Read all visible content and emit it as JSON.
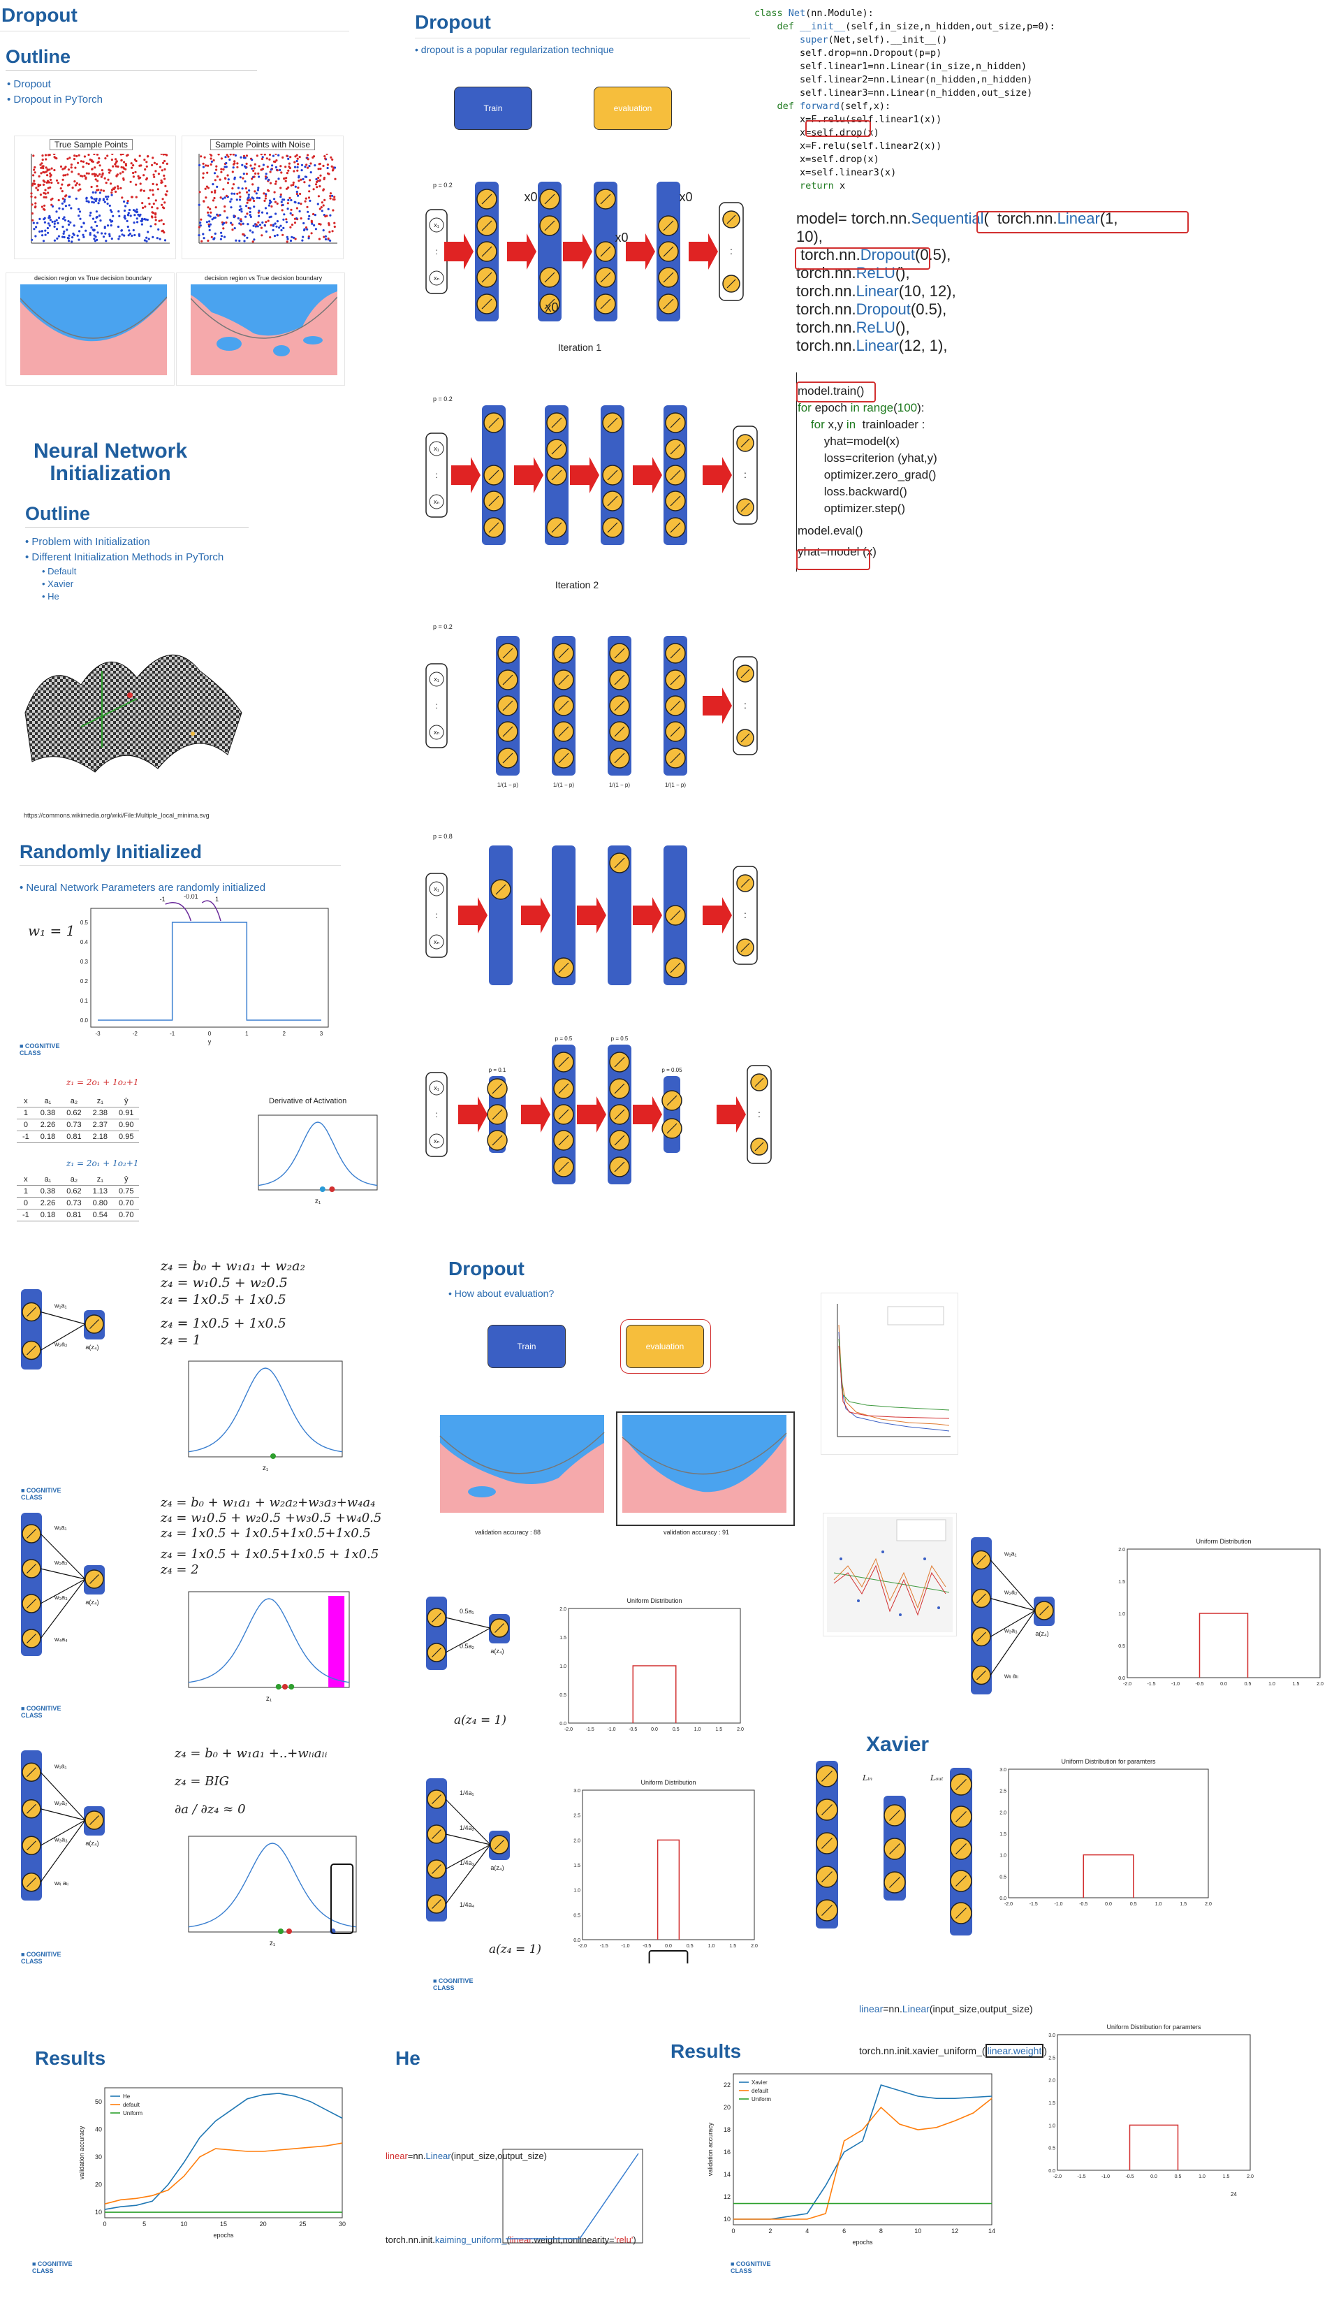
{
  "slide1": {
    "title": "Dropout",
    "outline": "Outline",
    "bullets": [
      "Dropout",
      "Dropout in PyTorch"
    ],
    "plot1_title": "True Sample Points",
    "plot2_title": "Sample Points with Noise",
    "plot3_title": "decision region vs True decision boundary",
    "plot4_title": "decision region vs True decision boundary"
  },
  "slide2": {
    "title": "Neural Network\nInitialization",
    "outline": "Outline",
    "bullets": [
      "Problem with Initialization",
      "Different Initialization Methods in PyTorch"
    ],
    "subbullets": [
      "Default",
      "Xavier",
      "He"
    ],
    "caption": "https://commons.wikimedia.org/wiki/File:Multiple_local_minima.svg"
  },
  "slide3": {
    "title": "Randomly Initialized",
    "bullet": "Neural Network Parameters are randomly initialized",
    "w_label": "w₁ = 1",
    "arrow_labels": [
      "-1",
      "-0.01",
      "1"
    ],
    "x_ticks": [
      "-3",
      "-2",
      "-1",
      "0",
      "1",
      "2",
      "3"
    ],
    "y_ticks": [
      "0.0",
      "0.1",
      "0.2",
      "0.3",
      "0.4",
      "0.5"
    ],
    "xlabel": "y"
  },
  "slide4": {
    "eq1": "z₁ = 2o₁ + 1o₂+1",
    "eq2": "z₁ = 2o₁ + 1o₂+1",
    "table_headers": [
      "x",
      "a₁",
      "a₂",
      "z₁",
      "ŷ"
    ],
    "table1": [
      [
        "1",
        "0.38",
        "0.62",
        "2.38",
        "0.91"
      ],
      [
        "0",
        "2.26",
        "0.73",
        "2.37",
        "0.90"
      ],
      [
        "-1",
        "0.18",
        "0.81",
        "2.18",
        "0.95"
      ]
    ],
    "table2": [
      [
        "1",
        "0.38",
        "0.62",
        "1.13",
        "0.75"
      ],
      [
        "0",
        "2.26",
        "0.73",
        "0.80",
        "0.70"
      ],
      [
        "-1",
        "0.18",
        "0.81",
        "0.54",
        "0.70"
      ]
    ],
    "chart_title": "Derivative of Activation",
    "xlabel": "z₁"
  },
  "slide5": {
    "eqs": [
      "z₄ = b₀ + w₁a₁ + w₂a₂",
      "z₄ = w₁0.5 + w₂0.5",
      "z₄ = 1x0.5 + 1x0.5",
      "z₄ = 1x0.5 + 1x0.5",
      "z₄ = 1"
    ],
    "node_labels": [
      "w₁a₁",
      "w₂a₂",
      "a(z₄)"
    ]
  },
  "slide6": {
    "eqs": [
      "z₄ = b₀ + w₁a₁ + w₂a₂+w₃a₃+w₄a₄",
      "z₄ = w₁0.5 + w₂0.5 +w₃0.5 +w₄0.5",
      "z₄ = 1x0.5 + 1x0.5+1x0.5+1x0.5",
      "z₄ = 1x0.5 + 1x0.5+1x0.5 + 1x0.5",
      "z₄ = 2"
    ],
    "node_labels": [
      "w₁a₁",
      "w₂a₂",
      "w₃a₃",
      "w₄a₄",
      "a(z₄)"
    ]
  },
  "slide7": {
    "eqs": [
      "z₄ = b₀ + w₁a₁ +..+wₗᵢaₗᵢ",
      "z₄ = BIG"
    ],
    "deriv": "∂a / ∂z₄ ≈ 0",
    "node_labels": [
      "w₁a₁",
      "w₂a₂",
      "w₃a₃",
      "wₗᵢ aₗᵢ",
      "a(z₄)"
    ]
  },
  "slide8": {
    "title": "Dropout",
    "bullet": "dropout is a popular regularization technique",
    "train": "Train",
    "eval": "evaluation",
    "p_label": "p = 0.2",
    "x0": "x0",
    "iter1": "Iteration 1"
  },
  "slide9": {
    "p_label": "p = 0.2",
    "iter2": "Iteration 2"
  },
  "slide10": {
    "p_label": "p = 0.2",
    "scale_label": "1/(1 − p)"
  },
  "slide11": {
    "p_label": "p = 0.8"
  },
  "slide12": {
    "labels": [
      "p = 0.1",
      "p = 0.5",
      "p = 0.5",
      "p = 0.05"
    ]
  },
  "code": {
    "lines": [
      "class Net(nn.Module):",
      "    def __init__(self,in_size,n_hidden,out_size,p=0):",
      "        super(Net,self).__init__()",
      "        self.drop=nn.Dropout(p=p)",
      "        self.linear1=nn.Linear(in_size,n_hidden)",
      "        self.linear2=nn.Linear(n_hidden,n_hidden)",
      "        self.linear3=nn.Linear(n_hidden,out_size)",
      "    def forward(self,x):",
      "        x=F.relu(self.linear1(x))",
      "        x=self.drop(x)",
      "        x=F.relu(self.linear2(x))",
      "        x=self.drop(x)",
      "        x=self.linear3(x)",
      "        return x"
    ],
    "seq": [
      "model= torch.nn.Sequential(  torch.nn.Linear(1,",
      "10),",
      " torch.nn.Dropout(0.5),",
      "torch.nn.ReLU(),",
      "torch.nn.Linear(10, 12),",
      "torch.nn.Dropout(0.5),",
      "torch.nn.ReLU(),",
      "torch.nn.Linear(12, 1),"
    ],
    "train": [
      "model.train()",
      "for epoch in range(100):",
      "    for x,y in  trainloader :",
      "        yhat=model(x)",
      "        loss=criterion (yhat,y)",
      "        optimizer.zero_grad()",
      "        loss.backward()",
      "        optimizer.step()",
      "model.eval()",
      "yhat=model (x)"
    ]
  },
  "slide13": {
    "title": "Dropout",
    "bullet": "How about evaluation?",
    "train": "Train",
    "eval": "evaluation",
    "val1": "validation accuracy : 88",
    "val2": "validation accuracy : 91"
  },
  "slide14": {
    "labels": [
      "0.5a₁",
      "0.5a₂",
      "a(z₄)"
    ],
    "chart_title": "Uniform Distribution",
    "a_eq": "a(z₄ = 1)"
  },
  "slide15": {
    "labels": [
      "1/4a₁",
      "1/4a₂",
      "1/4a₃",
      "1/4a₄",
      "a(z₄)"
    ],
    "chart_title": "Uniform Distribution",
    "a_eq": "a(z₄ = 1)"
  },
  "slide16": {
    "labels": [
      "w₁a₁",
      "w₂a₂",
      "w₃a₃",
      "wₗᵢ aₗᵢ",
      "a(z₄)"
    ],
    "chart_title": "Uniform Distribution",
    "xticks": [
      "-2.0",
      "-1.5",
      "-1.0",
      "-0.5",
      "0.0",
      "0.5",
      "1.0",
      "1.5",
      "2.0"
    ]
  },
  "slide17": {
    "title": "Xavier",
    "lin": "Lᵢₙ",
    "lout": "Lₒᵤₜ",
    "chart_title": "Uniform Distribution for paramters",
    "code1": "linear=nn.Linear(input_size,output_size)",
    "code2": "torch.nn.init.xavier_uniform_(linear.weight)"
  },
  "slide18": {
    "title": "Results",
    "legend": [
      "He",
      "default",
      "Uniform"
    ],
    "xlabel": "epochs",
    "ylabel": "validation accuracy"
  },
  "slide19": {
    "title": "He",
    "code1": "linear=nn.Linear(input_size,output_size)",
    "code2": "torch.nn.init.kaiming_uniform_(linear.weight,nonlinearity='relu')"
  },
  "slide20": {
    "title": "Results",
    "legend": [
      "Xavier",
      "default",
      "Uniform"
    ],
    "xlabel": "epochs",
    "ylabel": "validation accuracy"
  },
  "slide21": {
    "chart_title": "Uniform Distribution for paramters",
    "page": "24"
  },
  "logo": "COGNITIVE\nCLASS",
  "chart_data": [
    {
      "type": "line",
      "title": "Results",
      "series": [
        {
          "name": "He",
          "x": [
            0,
            2,
            4,
            6,
            8,
            10,
            12,
            14,
            16,
            18,
            20,
            22,
            24,
            26,
            28,
            30
          ],
          "values": [
            11,
            12,
            12.5,
            14,
            20,
            28,
            37,
            43,
            47,
            51,
            52.5,
            53,
            52,
            50,
            47,
            44
          ]
        },
        {
          "name": "default",
          "x": [
            0,
            2,
            4,
            6,
            8,
            10,
            12,
            14,
            16,
            18,
            20,
            22,
            24,
            26,
            28,
            30
          ],
          "values": [
            13,
            14.5,
            15,
            16,
            18,
            23,
            30,
            33,
            32.5,
            32,
            32,
            32.5,
            33,
            33.5,
            34,
            35
          ]
        },
        {
          "name": "Uniform",
          "x": [
            0,
            30
          ],
          "values": [
            10,
            10
          ]
        }
      ],
      "xlabel": "epochs",
      "ylabel": "validation accuracy",
      "ylim": [
        8,
        55
      ],
      "xlim": [
        0,
        30
      ]
    },
    {
      "type": "line",
      "title": "Results",
      "series": [
        {
          "name": "Xavier",
          "x": [
            0,
            2,
            4,
            5,
            6,
            7,
            8,
            9,
            10,
            11,
            12,
            13,
            14
          ],
          "values": [
            10,
            10,
            10.5,
            13,
            16,
            17,
            22,
            21.5,
            21,
            20.8,
            20.8,
            20.9,
            21
          ]
        },
        {
          "name": "default",
          "x": [
            0,
            2,
            4,
            5,
            6,
            7,
            8,
            9,
            10,
            11,
            12,
            13,
            14
          ],
          "values": [
            10,
            10,
            10,
            10.5,
            17,
            18,
            20,
            18.5,
            18,
            18.2,
            18.8,
            19.5,
            20.8
          ]
        },
        {
          "name": "Uniform",
          "x": [
            0,
            14
          ],
          "values": [
            11.4,
            11.4
          ]
        }
      ],
      "xlabel": "epochs",
      "ylabel": "validation accuracy",
      "ylim": [
        9.5,
        23
      ],
      "xlim": [
        0,
        14
      ]
    }
  ]
}
